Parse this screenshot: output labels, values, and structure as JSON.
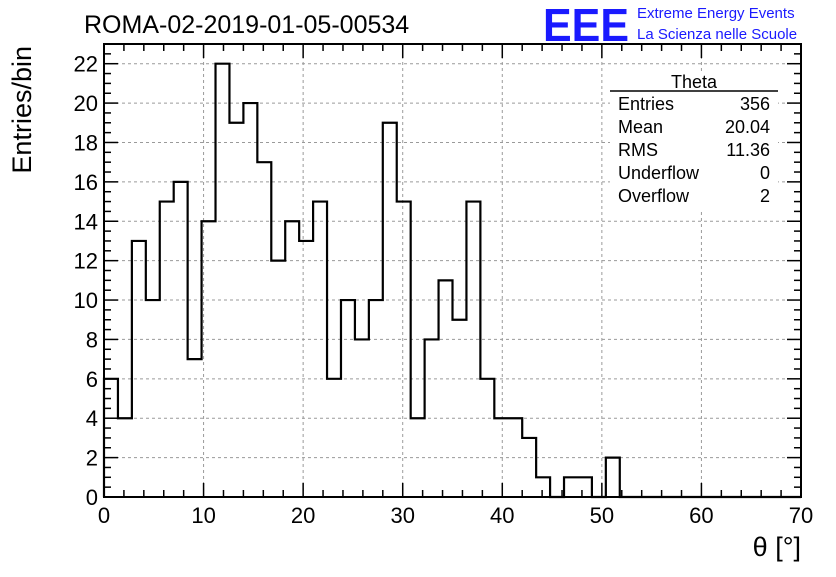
{
  "chart_data": {
    "type": "bar",
    "title": "ROMA-02-2019-01-05-00534",
    "xlabel": "θ [°]",
    "ylabel": "Entries/bin",
    "xlim": [
      0,
      70
    ],
    "ylim": [
      0,
      23
    ],
    "bin_width": 1.4,
    "x_ticks": [
      0,
      10,
      20,
      30,
      40,
      50,
      60,
      70
    ],
    "y_ticks": [
      0,
      2,
      4,
      6,
      8,
      10,
      12,
      14,
      16,
      18,
      20,
      22
    ],
    "x_tick_labels": [
      "0",
      "10",
      "20",
      "30",
      "40",
      "50",
      "60",
      "70"
    ],
    "y_tick_labels": [
      "0",
      "2",
      "4",
      "6",
      "8",
      "10",
      "12",
      "14",
      "16",
      "18",
      "20",
      "22"
    ],
    "grid": true,
    "values": [
      6,
      4,
      13,
      10,
      15,
      16,
      7,
      14,
      22,
      19,
      20,
      17,
      12,
      14,
      13,
      15,
      6,
      10,
      8,
      10,
      19,
      15,
      4,
      8,
      11,
      9,
      15,
      6,
      4,
      4,
      3,
      1,
      0,
      1,
      1,
      0,
      2,
      0,
      0,
      0,
      0,
      0,
      0,
      0,
      0,
      0,
      0,
      0,
      0,
      0
    ],
    "stats": {
      "name": "Theta",
      "rows": [
        {
          "label": "Entries",
          "value": "356"
        },
        {
          "label": "Mean",
          "value": "20.04"
        },
        {
          "label": "RMS",
          "value": "11.36"
        },
        {
          "label": "Underflow",
          "value": "0"
        },
        {
          "label": "Overflow",
          "value": "2"
        }
      ]
    }
  },
  "logo": {
    "mark": "EEE",
    "line1": "Extreme Energy Events",
    "line2": "La Scienza nelle Scuole",
    "color": "#1a1aff"
  },
  "colors": {
    "line": "#000000",
    "grid": "#9a9a9a",
    "logo": "#1a1aff"
  }
}
